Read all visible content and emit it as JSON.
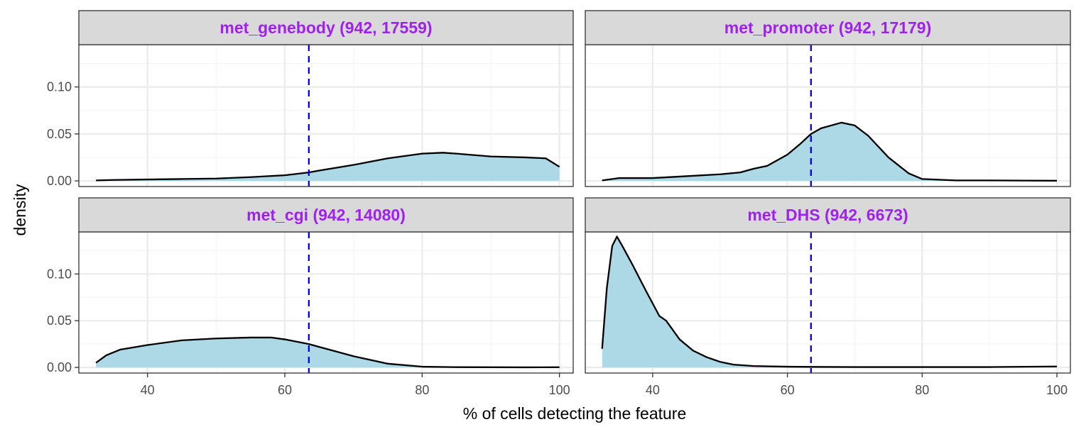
{
  "chart_data": {
    "type": "area",
    "xlabel": "% of cells detecting the feature",
    "ylabel": "density",
    "xlim": [
      30,
      102
    ],
    "ylim": [
      -0.006,
      0.145
    ],
    "x_ticks": [
      40,
      60,
      80,
      100
    ],
    "y_ticks": [
      0.0,
      0.05,
      0.1
    ],
    "x_tick_labels": [
      "40",
      "60",
      "80",
      "100"
    ],
    "y_tick_labels": [
      "0.00",
      "0.05",
      "0.10"
    ],
    "threshold_line": {
      "x": 63.5,
      "style": "dashed"
    },
    "grid": true,
    "colors": {
      "fill": "#add8e6",
      "line": "#000000",
      "threshold": "#0000ee",
      "strip_bg": "#d9d9d9",
      "strip_text": "#a020f0",
      "grid_major": "#ebebeb",
      "grid_minor": "#f5f5f5",
      "panel_border": "#333333"
    },
    "panels": [
      {
        "label": "met_genebody (942, 17559)",
        "x": [
          32.5,
          35,
          40,
          45,
          50,
          55,
          60,
          63.5,
          65,
          70,
          75,
          80,
          83,
          85,
          90,
          95,
          98,
          100
        ],
        "y": [
          0.0005,
          0.001,
          0.0015,
          0.002,
          0.0025,
          0.004,
          0.006,
          0.009,
          0.011,
          0.017,
          0.024,
          0.029,
          0.03,
          0.029,
          0.026,
          0.025,
          0.024,
          0.015
        ]
      },
      {
        "label": "met_promoter (942, 17179)",
        "x": [
          32.5,
          35,
          40,
          45,
          50,
          53,
          55,
          57,
          60,
          62,
          63.5,
          65,
          68,
          70,
          72,
          75,
          78,
          80,
          85,
          90,
          95,
          100
        ],
        "y": [
          0.0005,
          0.003,
          0.003,
          0.005,
          0.007,
          0.009,
          0.013,
          0.016,
          0.028,
          0.04,
          0.05,
          0.056,
          0.062,
          0.059,
          0.048,
          0.025,
          0.008,
          0.002,
          0.0005,
          0.0005,
          0.0003,
          0.0002
        ]
      },
      {
        "label": "met_cgi (942, 14080)",
        "x": [
          32.5,
          34,
          36,
          40,
          45,
          50,
          55,
          58,
          60,
          63.5,
          65,
          70,
          75,
          80,
          85,
          90,
          95,
          100
        ],
        "y": [
          0.005,
          0.013,
          0.019,
          0.024,
          0.029,
          0.031,
          0.032,
          0.032,
          0.03,
          0.025,
          0.022,
          0.012,
          0.004,
          0.0008,
          0.0003,
          0.0002,
          0.0001,
          0.0002
        ]
      },
      {
        "label": "met_DHS (942, 6673)",
        "x": [
          32.5,
          33.2,
          34,
          34.7,
          35.5,
          37,
          39,
          41,
          42,
          44,
          46,
          48,
          50,
          52,
          55,
          60,
          63.5,
          70,
          80,
          90,
          100
        ],
        "y": [
          0.02,
          0.085,
          0.13,
          0.14,
          0.13,
          0.11,
          0.082,
          0.055,
          0.05,
          0.03,
          0.018,
          0.011,
          0.006,
          0.003,
          0.0015,
          0.0008,
          0.0006,
          0.0004,
          0.0004,
          0.0004,
          0.001
        ]
      }
    ]
  }
}
